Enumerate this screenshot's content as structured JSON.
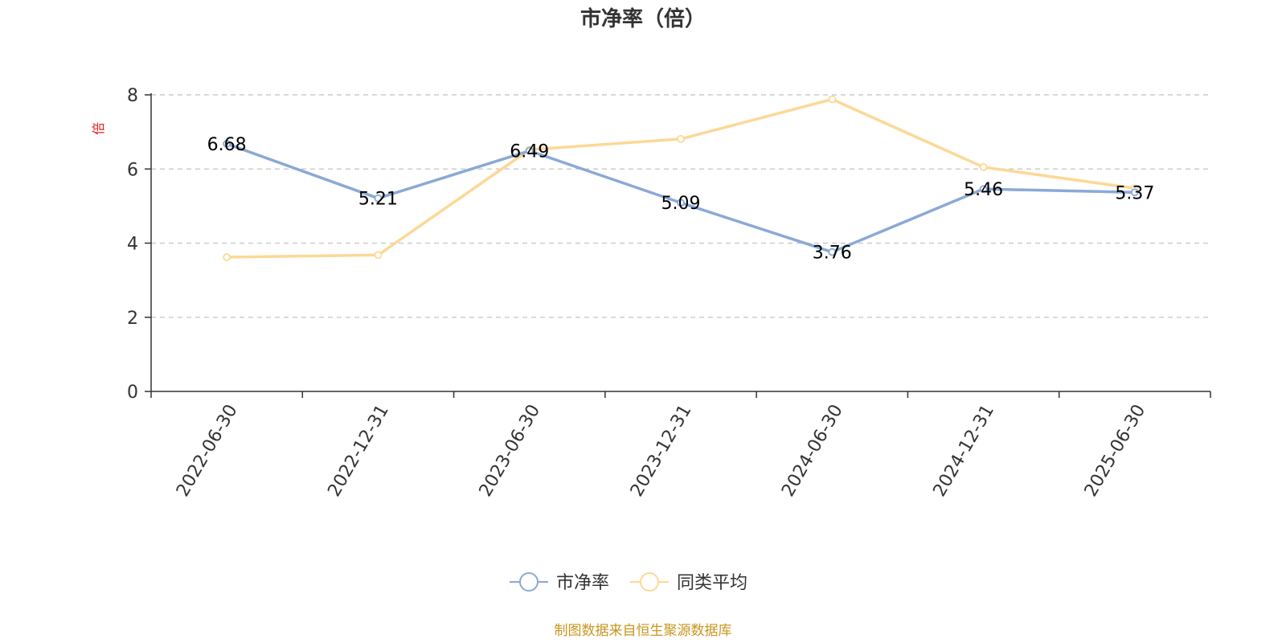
{
  "chart_data": {
    "type": "line",
    "title": "市净率（倍）",
    "ylabel": "倍",
    "ylim": [
      0,
      8
    ],
    "yticks": [
      0,
      2,
      4,
      6,
      8
    ],
    "grid": true,
    "legend_position": "bottom",
    "categories": [
      "2022-06-30",
      "2022-12-31",
      "2023-06-30",
      "2023-12-31",
      "2024-06-30",
      "2024-12-31",
      "2025-06-30"
    ],
    "series": [
      {
        "name": "市净率",
        "color": "#8aa9d6",
        "values": [
          6.68,
          5.21,
          6.49,
          5.09,
          3.76,
          5.46,
          5.37
        ],
        "data_labels": [
          "6.68",
          "5.21",
          "6.49",
          "5.09",
          "3.76",
          "5.46",
          "5.37"
        ]
      },
      {
        "name": "同类平均",
        "color": "#fcd897",
        "values": [
          3.62,
          3.68,
          6.52,
          6.81,
          7.88,
          6.05,
          5.48
        ]
      }
    ]
  },
  "footer": {
    "source": "制图数据来自恒生聚源数据库",
    "source_color": "#c8961e"
  },
  "unit_color": "#e02020"
}
